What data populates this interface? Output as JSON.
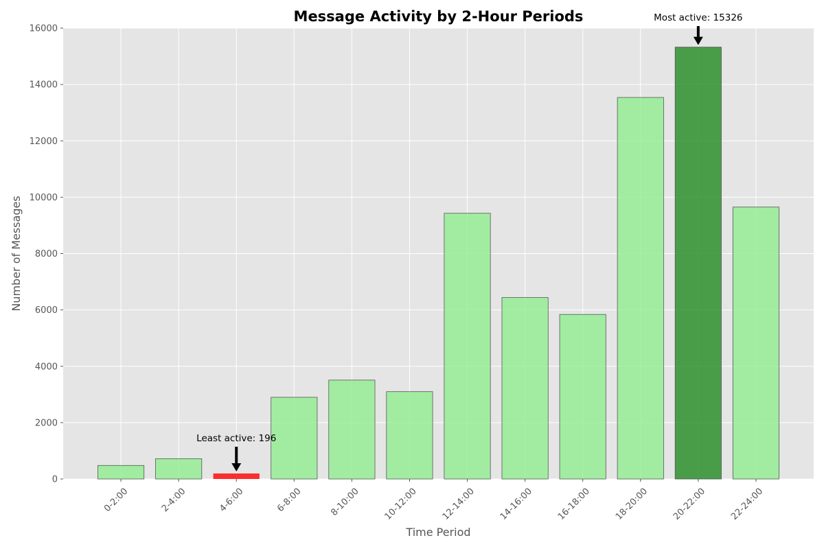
{
  "chart_data": {
    "type": "bar",
    "title": "Message Activity by 2-Hour Periods",
    "xlabel": "Time Period",
    "ylabel": "Number of Messages",
    "categories": [
      "0-2:00",
      "2-4:00",
      "4-6:00",
      "6-8:00",
      "8-10:00",
      "10-12:00",
      "12-14:00",
      "14-16:00",
      "16-18:00",
      "18-20:00",
      "20-22:00",
      "22-24:00"
    ],
    "values": [
      480,
      720,
      196,
      2900,
      3510,
      3100,
      9430,
      6440,
      5840,
      13540,
      15326,
      9650
    ],
    "ylim": [
      0,
      16000
    ],
    "yticks": [
      0,
      2000,
      4000,
      6000,
      8000,
      10000,
      12000,
      14000,
      16000
    ],
    "grid": true,
    "colors": {
      "default_bar": "#90ee90",
      "max_bar": "#228b22",
      "min_bar": "#ff0000",
      "background": "#e5e5e5",
      "grid": "#ffffff"
    },
    "annotations": [
      {
        "text": "Most active: 15326",
        "category": "20-22:00",
        "value": 15326
      },
      {
        "text": "Least active: 196",
        "category": "4-6:00",
        "value": 196
      }
    ]
  }
}
